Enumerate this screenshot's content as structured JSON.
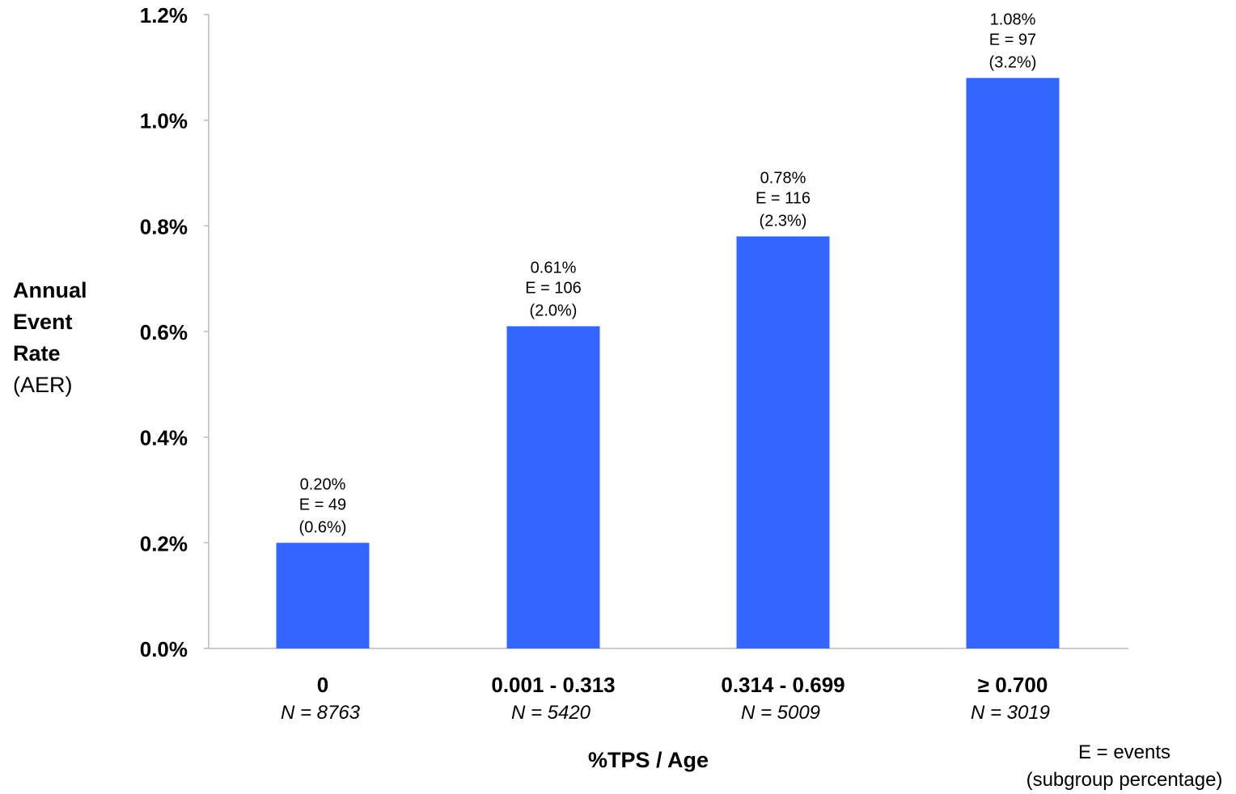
{
  "chart_data": {
    "type": "bar",
    "ylabel": {
      "line1": "Annual",
      "line2": "Event",
      "line3": "Rate",
      "line4": "(AER)"
    },
    "xlabel": "%TPS / Age",
    "ylim": [
      0,
      1.2
    ],
    "yticks": [
      "0.0%",
      "0.2%",
      "0.4%",
      "0.6%",
      "0.8%",
      "1.0%",
      "1.2%"
    ],
    "ytick_values": [
      0,
      0.2,
      0.4,
      0.6,
      0.8,
      1.0,
      1.2
    ],
    "bar_color": "#3366ff",
    "categories": [
      "0",
      "0.001 - 0.313",
      "0.314 - 0.699",
      "≥ 0.700"
    ],
    "n_labels": [
      "N = 8763",
      "N = 5420",
      "N = 5009",
      "N = 3019"
    ],
    "values": [
      0.2,
      0.61,
      0.78,
      1.08
    ],
    "value_labels": [
      "0.20%",
      "0.61%",
      "0.78%",
      "1.08%"
    ],
    "event_labels": [
      "E = 49",
      "E = 106",
      "E = 116",
      "E = 97"
    ],
    "pct_labels": [
      "(0.6%)",
      "(2.0%)",
      "(2.3%)",
      "(3.2%)"
    ],
    "grid": false,
    "legend": "none"
  },
  "note": {
    "line1": "E = events",
    "line2": "(subgroup percentage)"
  }
}
